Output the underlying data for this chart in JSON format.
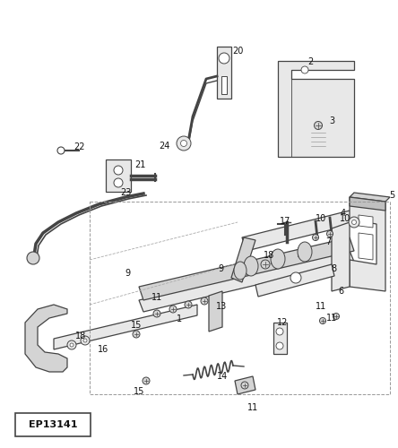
{
  "background_color": "#ffffff",
  "line_color": "#444444",
  "label_color": "#111111",
  "part_label_id": "EP13141",
  "figsize": [
    4.44,
    5.0
  ],
  "dpi": 100,
  "label_fontsize": 7.0
}
